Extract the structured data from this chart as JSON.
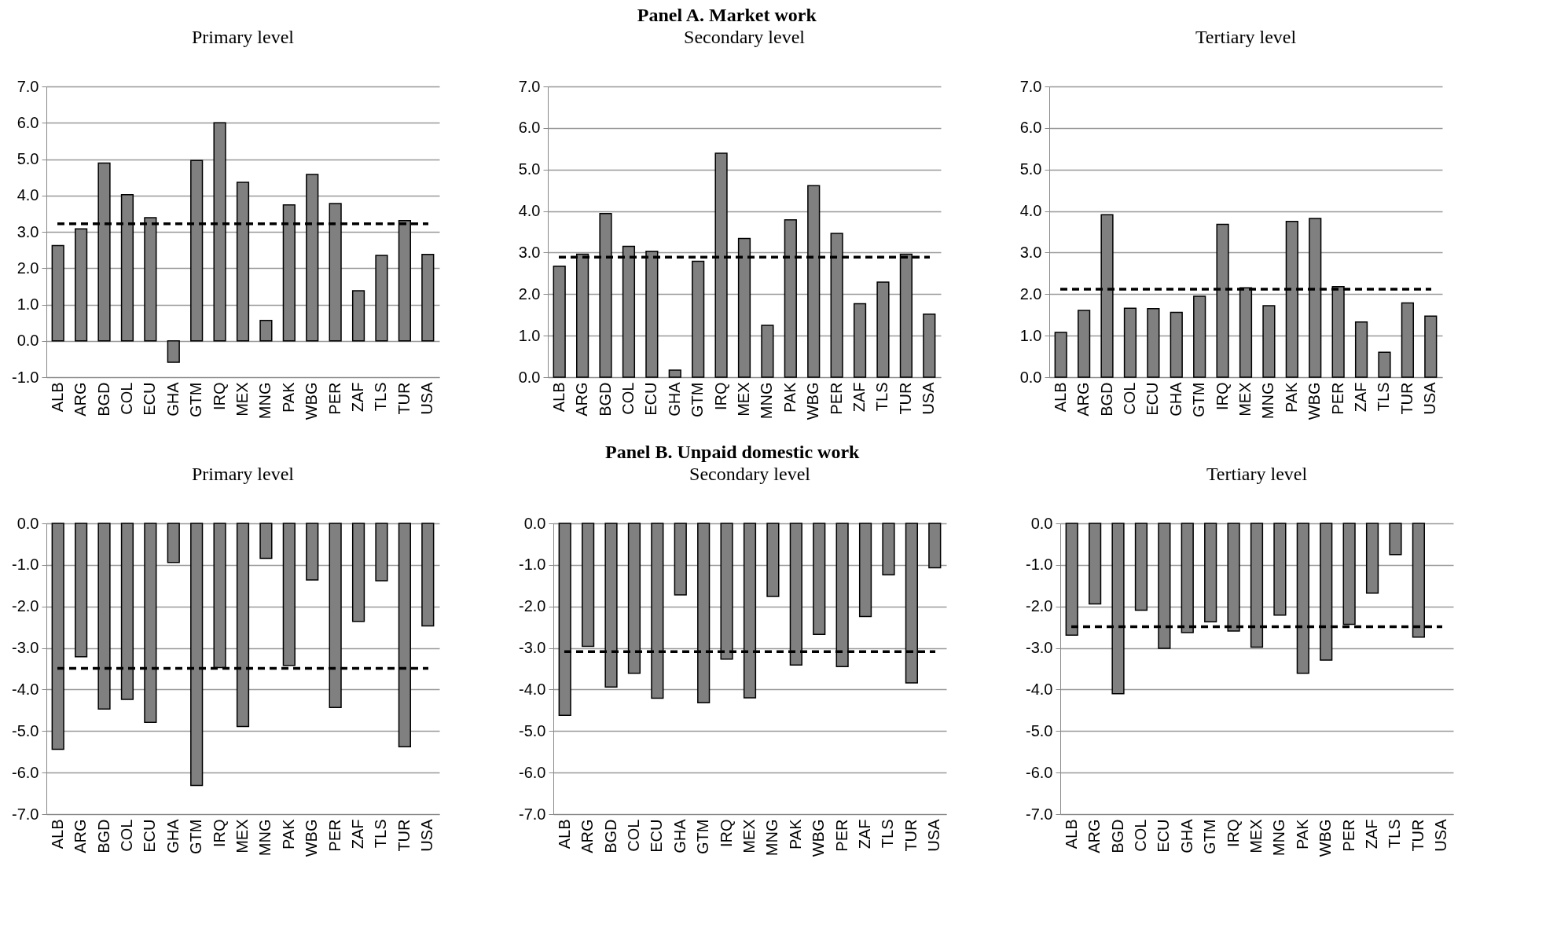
{
  "chart_data": [
    {
      "type": "bar",
      "title": "Primary level",
      "categories": [
        "ALB",
        "ARG",
        "BGD",
        "COL",
        "ECU",
        "GHA",
        "GTM",
        "IRQ",
        "MEX",
        "MNG",
        "PAK",
        "WBG",
        "PER",
        "ZAF",
        "TLS",
        "TUR",
        "USA"
      ],
      "values": [
        2.62,
        3.08,
        4.89,
        4.02,
        3.39,
        -0.59,
        4.96,
        6.0,
        4.36,
        0.56,
        3.74,
        4.58,
        3.78,
        1.38,
        2.35,
        3.31,
        2.38
      ],
      "color": "#808080",
      "ylim": [
        -1,
        7
      ],
      "yticks": [
        {
          "value": -1,
          "label": "-1.0"
        },
        {
          "value": 0,
          "label": "0.0"
        },
        {
          "value": 1,
          "label": "1.0"
        },
        {
          "value": 2,
          "label": "2.0"
        },
        {
          "value": 3,
          "label": "3.0"
        },
        {
          "value": 4,
          "label": "4.0"
        },
        {
          "value": 5,
          "label": "5.0"
        },
        {
          "value": 6,
          "label": "6.0"
        },
        {
          "value": 7,
          "label": "7.0"
        }
      ],
      "grid": "y",
      "ref_lines": [
        {
          "axis": "y",
          "value": 3.22,
          "color": "#000000",
          "line_style": "dashed"
        }
      ]
    },
    {
      "type": "bar",
      "title": "Panel A. Market work",
      "subtitle": "Secondary level",
      "categories": [
        "ALB",
        "ARG",
        "BGD",
        "COL",
        "ECU",
        "GHA",
        "GTM",
        "IRQ",
        "MEX",
        "MNG",
        "PAK",
        "WBG",
        "PER",
        "ZAF",
        "TLS",
        "TUR",
        "USA"
      ],
      "values": [
        2.67,
        2.96,
        3.94,
        3.15,
        3.03,
        0.17,
        2.79,
        5.39,
        3.34,
        1.25,
        3.79,
        4.61,
        3.46,
        1.77,
        2.29,
        2.96,
        1.52
      ],
      "color": "#808080",
      "ylim": [
        0,
        7
      ],
      "yticks": [
        {
          "value": 0,
          "label": "0.0"
        },
        {
          "value": 1,
          "label": "1.0"
        },
        {
          "value": 2,
          "label": "2.0"
        },
        {
          "value": 3,
          "label": "3.0"
        },
        {
          "value": 4,
          "label": "4.0"
        },
        {
          "value": 5,
          "label": "5.0"
        },
        {
          "value": 6,
          "label": "6.0"
        },
        {
          "value": 7,
          "label": "7.0"
        }
      ],
      "grid": "y",
      "ref_lines": [
        {
          "axis": "y",
          "value": 2.89,
          "color": "#000000",
          "line_style": "dashed"
        }
      ]
    },
    {
      "type": "bar",
      "title": "Tertiary level",
      "categories": [
        "ALB",
        "ARG",
        "BGD",
        "COL",
        "ECU",
        "GHA",
        "GTM",
        "IRQ",
        "MEX",
        "MNG",
        "PAK",
        "WBG",
        "PER",
        "ZAF",
        "TLS",
        "TUR",
        "USA"
      ],
      "values": [
        1.08,
        1.61,
        3.91,
        1.66,
        1.65,
        1.56,
        1.95,
        3.68,
        2.15,
        1.72,
        3.75,
        3.82,
        2.18,
        1.33,
        0.6,
        1.79,
        1.47
      ],
      "color": "#808080",
      "ylim": [
        0,
        7
      ],
      "yticks": [
        {
          "value": 0,
          "label": "0.0"
        },
        {
          "value": 1,
          "label": "1.0"
        },
        {
          "value": 2,
          "label": "2.0"
        },
        {
          "value": 3,
          "label": "3.0"
        },
        {
          "value": 4,
          "label": "4.0"
        },
        {
          "value": 5,
          "label": "5.0"
        },
        {
          "value": 6,
          "label": "6.0"
        },
        {
          "value": 7,
          "label": "7.0"
        }
      ],
      "grid": "y",
      "ref_lines": [
        {
          "axis": "y",
          "value": 2.12,
          "color": "#000000",
          "line_style": "dashed"
        }
      ]
    },
    {
      "type": "bar",
      "title": "Primary level",
      "categories": [
        "ALB",
        "ARG",
        "BGD",
        "COL",
        "ECU",
        "GHA",
        "GTM",
        "IRQ",
        "MEX",
        "MNG",
        "PAK",
        "WBG",
        "PER",
        "ZAF",
        "TLS",
        "TUR",
        "USA"
      ],
      "values": [
        -5.44,
        -3.21,
        -4.47,
        -4.24,
        -4.79,
        -0.94,
        -6.31,
        -3.47,
        -4.89,
        -0.84,
        -3.42,
        -1.36,
        -4.43,
        -2.36,
        -1.38,
        -5.38,
        -2.47
      ],
      "color": "#808080",
      "ylim": [
        -7,
        0
      ],
      "yticks": [
        {
          "value": -7,
          "label": "-7.0"
        },
        {
          "value": -6,
          "label": "-6.0"
        },
        {
          "value": -5,
          "label": "-5.0"
        },
        {
          "value": -4,
          "label": "-4.0"
        },
        {
          "value": -3,
          "label": "-3.0"
        },
        {
          "value": -2,
          "label": "-2.0"
        },
        {
          "value": -1,
          "label": "-1.0"
        },
        {
          "value": 0,
          "label": "0.0"
        }
      ],
      "grid": "y",
      "ref_lines": [
        {
          "axis": "y",
          "value": -3.49,
          "color": "#000000",
          "line_style": "dashed"
        }
      ]
    },
    {
      "type": "bar",
      "title": "Panel B. Unpaid domestic work",
      "subtitle": "Secondary level",
      "categories": [
        "ALB",
        "ARG",
        "BGD",
        "COL",
        "ECU",
        "GHA",
        "GTM",
        "IRQ",
        "MEX",
        "MNG",
        "PAK",
        "WBG",
        "PER",
        "ZAF",
        "TLS",
        "TUR",
        "USA"
      ],
      "values": [
        -4.62,
        -2.96,
        -3.94,
        -3.61,
        -4.21,
        -1.72,
        -4.32,
        -3.27,
        -4.2,
        -1.76,
        -3.41,
        -2.67,
        -3.45,
        -2.24,
        -1.24,
        -3.84,
        -1.07
      ],
      "color": "#808080",
      "ylim": [
        -7,
        0
      ],
      "yticks": [
        {
          "value": -7,
          "label": "-7.0"
        },
        {
          "value": -6,
          "label": "-6.0"
        },
        {
          "value": -5,
          "label": "-5.0"
        },
        {
          "value": -4,
          "label": "-4.0"
        },
        {
          "value": -3,
          "label": "-3.0"
        },
        {
          "value": -2,
          "label": "-2.0"
        },
        {
          "value": -1,
          "label": "-1.0"
        },
        {
          "value": 0,
          "label": "0.0"
        }
      ],
      "grid": "y",
      "ref_lines": [
        {
          "axis": "y",
          "value": -3.09,
          "color": "#000000",
          "line_style": "dashed"
        }
      ]
    },
    {
      "type": "bar",
      "title": "Tertiary level",
      "categories": [
        "ALB",
        "ARG",
        "BGD",
        "COL",
        "ECU",
        "GHA",
        "GTM",
        "IRQ",
        "MEX",
        "MNG",
        "PAK",
        "WBG",
        "PER",
        "ZAF",
        "TLS",
        "TUR",
        "USA"
      ],
      "values": [
        -2.69,
        -1.94,
        -4.1,
        -2.09,
        -3.01,
        -2.63,
        -2.37,
        -2.59,
        -2.98,
        -2.21,
        -3.61,
        -3.29,
        -2.43,
        -1.68,
        -0.75,
        -2.74,
        null
      ],
      "color": "#808080",
      "ylim": [
        -7,
        0
      ],
      "yticks": [
        {
          "value": -7,
          "label": "-7.0"
        },
        {
          "value": -6,
          "label": "-6.0"
        },
        {
          "value": -5,
          "label": "-5.0"
        },
        {
          "value": -4,
          "label": "-4.0"
        },
        {
          "value": -3,
          "label": "-3.0"
        },
        {
          "value": -2,
          "label": "-2.0"
        },
        {
          "value": -1,
          "label": "-1.0"
        },
        {
          "value": 0,
          "label": "0.0"
        }
      ],
      "grid": "y",
      "ref_lines": [
        {
          "axis": "y",
          "value": -2.49,
          "color": "#000000",
          "line_style": "dashed"
        }
      ]
    }
  ]
}
